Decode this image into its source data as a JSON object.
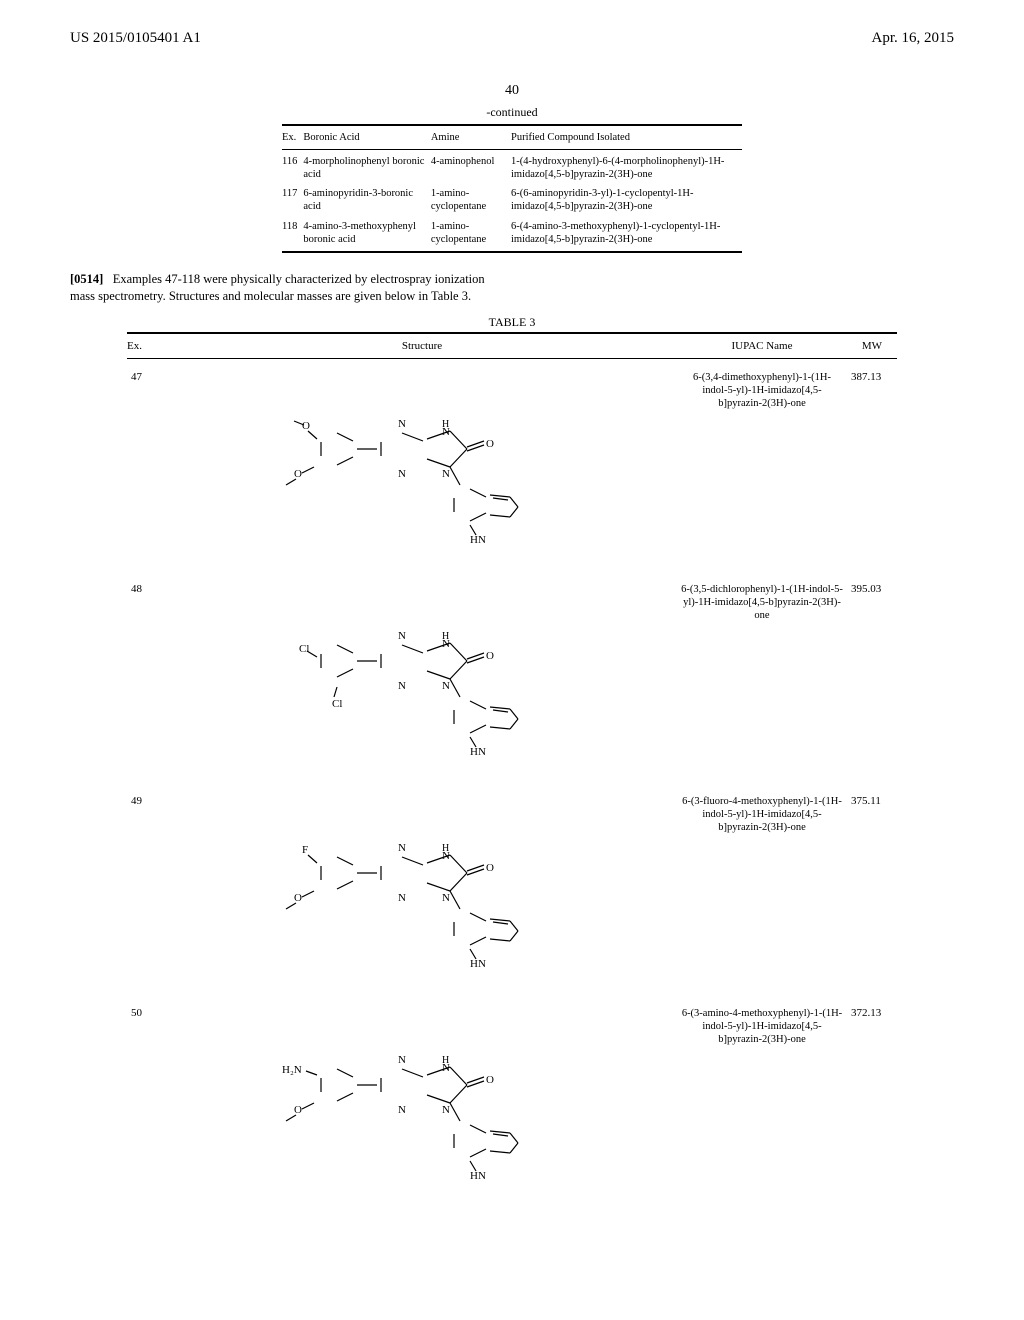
{
  "header": {
    "doc_number": "US 2015/0105401 A1",
    "date": "Apr. 16, 2015"
  },
  "page_number": "40",
  "continued_label": "-continued",
  "small_table": {
    "headers": [
      "Ex.",
      "Boronic Acid",
      "Amine",
      "Purified Compound Isolated"
    ],
    "rows": [
      {
        "ex": "116",
        "acid": "4-morpholinophenyl boronic acid",
        "amine": "4-aminophenol",
        "product": "1-(4-hydroxyphenyl)-6-(4-morpholinophenyl)-1H-imidazo[4,5-b]pyrazin-2(3H)-one"
      },
      {
        "ex": "117",
        "acid": "6-aminopyridin-3-boronic acid",
        "amine": "1-amino-cyclopentane",
        "product": "6-(6-aminopyridin-3-yl)-1-cyclopentyl-1H-imidazo[4,5-b]pyrazin-2(3H)-one"
      },
      {
        "ex": "118",
        "acid": "4-amino-3-methoxyphenyl boronic acid",
        "amine": "1-amino-cyclopentane",
        "product": "6-(4-amino-3-methoxyphenyl)-1-cyclopentyl-1H-imidazo[4,5-b]pyrazin-2(3H)-one"
      }
    ]
  },
  "paragraph": {
    "num": "[0514]",
    "text": "Examples 47-118 were physically characterized by electrospray ionization mass spectrometry. Structures and molecular masses are given below in Table 3."
  },
  "table3_caption": "TABLE 3",
  "table3": {
    "headers": [
      "Ex.",
      "Structure",
      "IUPAC Name",
      "MW"
    ],
    "rows": [
      {
        "ex": "47",
        "name": "6-(3,4-dimethoxyphenyl)-1-(1H-indol-5-yl)-1H-imidazo[4,5-b]pyrazin-2(3H)-one",
        "mw": "387.13",
        "subst1": "O",
        "subst1_methyl": true,
        "subst2": "O",
        "subst2_methyl": true,
        "labels": {
          "hn": "HN"
        }
      },
      {
        "ex": "48",
        "name": "6-(3,5-dichlorophenyl)-1-(1H-indol-5-yl)-1H-imidazo[4,5-b]pyrazin-2(3H)-one",
        "mw": "395.03",
        "subst_35": "Cl",
        "labels": {
          "hn": "HN"
        }
      },
      {
        "ex": "49",
        "name": "6-(3-fluoro-4-methoxyphenyl)-1-(1H-indol-5-yl)-1H-imidazo[4,5-b]pyrazin-2(3H)-one",
        "mw": "375.11",
        "subst1": "F",
        "subst2": "O",
        "subst2_methyl": true,
        "labels": {
          "hn": "HN"
        }
      },
      {
        "ex": "50",
        "name": "6-(3-amino-4-methoxyphenyl)-1-(1H-indol-5-yl)-1H-imidazo[4,5-b]pyrazin-2(3H)-one",
        "mw": "372.13",
        "subst1": "H2N",
        "subst1_text": true,
        "subst2": "O",
        "subst2_methyl": true,
        "labels": {
          "hn": "HN"
        }
      }
    ]
  },
  "chem_labels": {
    "N": "N",
    "O": "O",
    "H": "H",
    "HN": "HN",
    "Cl": "Cl",
    "F": "F",
    "H2N": "H₂N"
  }
}
